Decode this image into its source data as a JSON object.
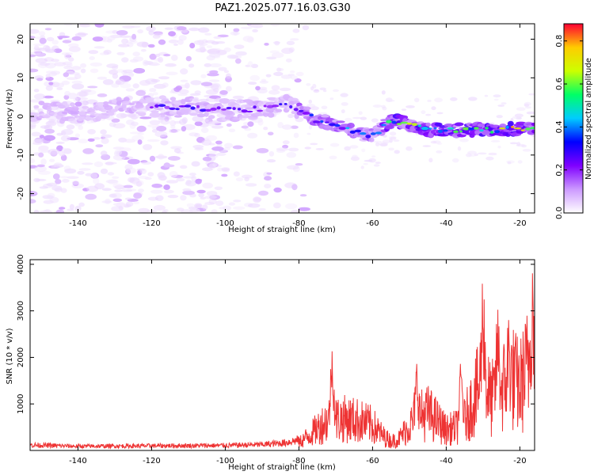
{
  "title": "PAZ1.2025.077.16.03.G30",
  "chart_data": [
    {
      "type": "heatmap",
      "xlabel": "Height of straight line (km)",
      "ylabel": "Frequency (Hz)",
      "colorbar_label": "Normalized spectral amplitude",
      "xlim": [
        -153,
        -16
      ],
      "ylim": [
        -25,
        24
      ],
      "x_ticks": [
        -140,
        -120,
        -100,
        -80,
        -60,
        -40,
        -20
      ],
      "y_ticks": [
        -20,
        -10,
        0,
        10,
        20
      ],
      "colorbar_range": [
        0.0,
        0.88
      ],
      "colorbar_ticks": [
        "0.0",
        "0.2",
        "0.4",
        "0.6",
        "0.8"
      ],
      "colormap": [
        "#ffffff",
        "#cc99ff",
        "#7f00ff",
        "#0000ff",
        "#00ccff",
        "#00ff66",
        "#ccff00",
        "#ffcc00",
        "#ff0033"
      ],
      "ridge": {
        "x": [
          -153,
          -140,
          -130,
          -120,
          -110,
          -100,
          -90,
          -85,
          -80,
          -75,
          -70,
          -65,
          -60,
          -55,
          -50,
          -45,
          -40,
          -35,
          -30,
          -25,
          -20,
          -16
        ],
        "freq": [
          1.5,
          1.0,
          2.0,
          2.5,
          2.5,
          1.5,
          2.0,
          3.0,
          2.0,
          -1.0,
          -2.0,
          -4.0,
          -5.0,
          -1.0,
          -2.0,
          -3.5,
          -3.5,
          -3.5,
          -3.5,
          -3.5,
          -3.0,
          -3.0
        ]
      }
    },
    {
      "type": "line",
      "xlabel": "Height of straight line (km)",
      "ylabel": "SNR (10 * v/v)",
      "xlim": [
        -153,
        -16
      ],
      "ylim": [
        0,
        4100
      ],
      "x_ticks": [
        -140,
        -120,
        -100,
        -80,
        -60,
        -40,
        -20
      ],
      "y_ticks": [
        1000,
        2000,
        3000,
        4000
      ],
      "color": "#ee3333",
      "envelope": {
        "x": [
          -153,
          -140,
          -120,
          -100,
          -90,
          -84,
          -80,
          -77,
          -73,
          -70,
          -67,
          -64,
          -60,
          -57,
          -55,
          -53,
          -50,
          -47,
          -45,
          -43,
          -40,
          -37,
          -35,
          -33,
          -31,
          -30,
          -28,
          -26,
          -24,
          -22,
          -20,
          -18,
          -17,
          -16
        ],
        "y": [
          130,
          100,
          110,
          120,
          140,
          180,
          250,
          500,
          900,
          1000,
          1000,
          950,
          800,
          450,
          300,
          350,
          800,
          1100,
          1200,
          1000,
          650,
          750,
          950,
          1500,
          2000,
          2400,
          1600,
          1800,
          2100,
          2300,
          2000,
          2600,
          3300,
          2000
        ]
      },
      "peaks": [
        {
          "x": -71,
          "y": 2200
        },
        {
          "x": -48,
          "y": 1850
        },
        {
          "x": -36,
          "y": 1900
        },
        {
          "x": -30,
          "y": 3800
        },
        {
          "x": -26,
          "y": 2900
        },
        {
          "x": -23,
          "y": 2800
        },
        {
          "x": -16.5,
          "y": 4050
        }
      ]
    }
  ]
}
